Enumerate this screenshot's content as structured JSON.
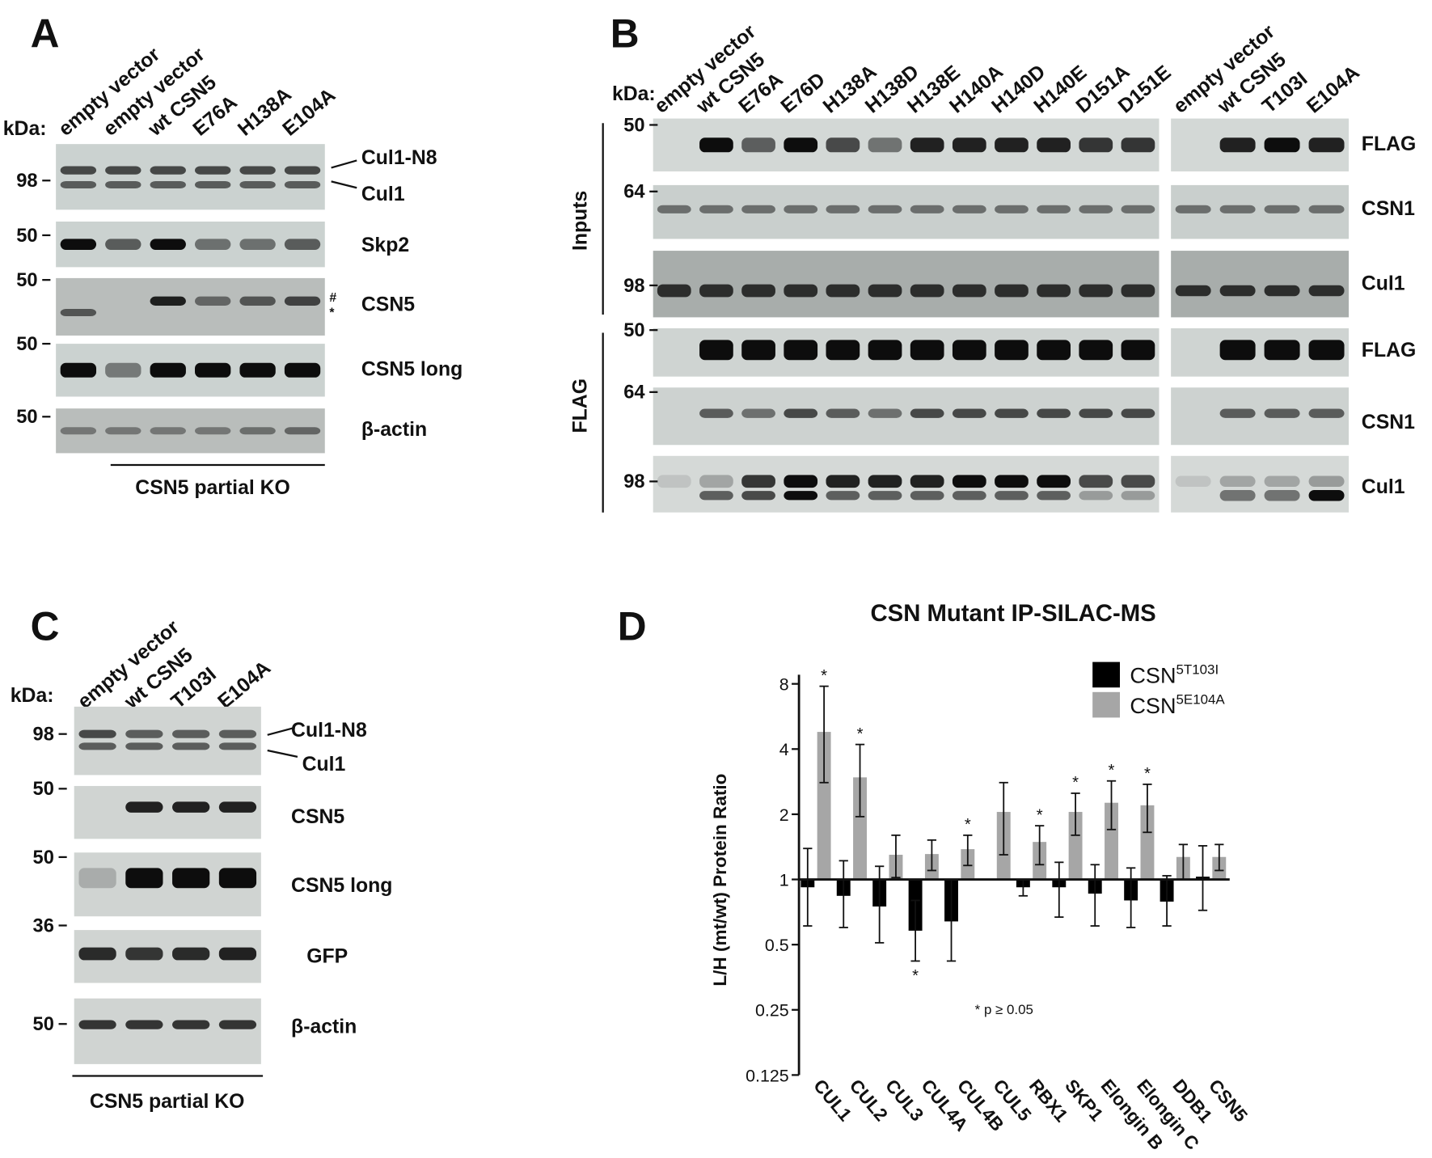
{
  "panel_a": {
    "letter": "A",
    "kda": "kDa:",
    "lanes": [
      "empty vector",
      "empty vector",
      "wt CSN5",
      "E76A",
      "H138A",
      "E104A"
    ],
    "blots": [
      {
        "marker": 98,
        "labels": [
          "Cul1-N8",
          "Cul1"
        ]
      },
      {
        "marker": 50,
        "labels": [
          "Skp2"
        ]
      },
      {
        "marker": 50,
        "labels": [
          "CSN5"
        ],
        "marks": [
          "#",
          "*"
        ]
      },
      {
        "marker": 50,
        "labels": [
          "CSN5 long"
        ]
      },
      {
        "marker": 50,
        "labels": [
          "β-actin"
        ]
      }
    ],
    "group": "CSN5 partial KO"
  },
  "panel_b": {
    "letter": "B",
    "kda": "kDa:",
    "lanes_left": [
      "empty vector",
      "wt CSN5",
      "E76A",
      "E76D",
      "H138A",
      "H138D",
      "H138E",
      "H140A",
      "H140D",
      "H140E",
      "D151A",
      "D151E"
    ],
    "lanes_right": [
      "empty vector",
      "wt CSN5",
      "T103I",
      "E104A"
    ],
    "groups": [
      "Inputs",
      "FLAG"
    ],
    "blots": [
      {
        "marker": 50,
        "label": "FLAG"
      },
      {
        "marker": 64,
        "label": "CSN1"
      },
      {
        "marker": 98,
        "label": "Cul1"
      },
      {
        "marker": 50,
        "label": "FLAG"
      },
      {
        "marker": 64,
        "label": "CSN1"
      },
      {
        "marker": 98,
        "label": "Cul1"
      }
    ]
  },
  "panel_c": {
    "letter": "C",
    "kda": "kDa:",
    "lanes": [
      "empty vector",
      "wt CSN5",
      "T103I",
      "E104A"
    ],
    "blots": [
      {
        "marker": 98,
        "labels": [
          "Cul1-N8",
          "Cul1"
        ]
      },
      {
        "marker": 50,
        "labels": [
          "CSN5"
        ]
      },
      {
        "marker": 50,
        "labels": [
          "CSN5 long"
        ]
      },
      {
        "marker": 36,
        "labels": [
          "GFP"
        ]
      },
      {
        "marker": 50,
        "labels": [
          "β-actin"
        ]
      }
    ],
    "group": "CSN5 partial KO"
  },
  "chart_data": {
    "type": "bar",
    "panel": "D",
    "title": "CSN Mutant IP-SILAC-MS",
    "y_label": "L/H (mt/wt) Protein Ratio",
    "note": "* p ≥ 0.05",
    "categories": [
      "CUL1",
      "CUL2",
      "CUL3",
      "CUL4A",
      "CUL4B",
      "CUL5",
      "RBX1",
      "SKP1",
      "Elongin B",
      "Elongin C",
      "DDB1",
      "CSN5"
    ],
    "yscale": "log2",
    "ylim": [
      0.125,
      8
    ],
    "yticks": [
      0.125,
      0.25,
      0.5,
      1,
      2,
      4,
      8
    ],
    "bar_base": 1,
    "series": [
      {
        "name": "CSN",
        "superscript": "5T103I",
        "color": "#000000",
        "values": [
          0.92,
          0.84,
          0.75,
          0.58,
          0.64,
          null,
          0.92,
          0.92,
          0.86,
          0.8,
          0.79,
          1.03
        ],
        "error_low": [
          0.61,
          0.6,
          0.51,
          0.42,
          0.42,
          null,
          0.84,
          0.67,
          0.61,
          0.6,
          0.61,
          0.72
        ],
        "error_high": [
          1.39,
          1.22,
          1.15,
          0.8,
          1.0,
          null,
          1.0,
          1.2,
          1.17,
          1.13,
          1.04,
          1.43
        ],
        "significance": [
          null,
          null,
          null,
          "*",
          null,
          null,
          null,
          null,
          null,
          null,
          null,
          null
        ]
      },
      {
        "name": "CSN",
        "superscript": "5E104A",
        "color": "#a6a6a6",
        "values": [
          4.8,
          2.96,
          1.3,
          1.31,
          1.38,
          2.05,
          1.49,
          2.05,
          2.26,
          2.2,
          1.27,
          1.27
        ],
        "error_low": [
          2.8,
          1.95,
          1.02,
          1.1,
          1.16,
          1.3,
          1.17,
          1.6,
          1.7,
          1.65,
          1.0,
          1.1
        ],
        "error_high": [
          7.8,
          4.2,
          1.6,
          1.52,
          1.6,
          2.8,
          1.77,
          2.5,
          2.85,
          2.75,
          1.45,
          1.45
        ],
        "significance": [
          "*",
          "*",
          null,
          null,
          "*",
          null,
          "*",
          "*",
          "*",
          "*",
          null,
          null
        ]
      }
    ]
  }
}
